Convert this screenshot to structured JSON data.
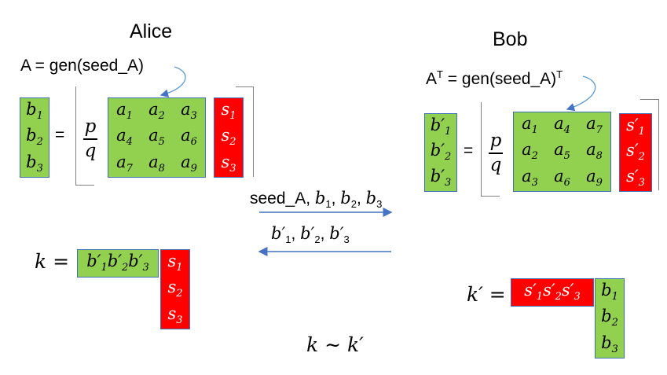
{
  "alice": {
    "title": "Alice",
    "matrix_eq_label": "A = gen(seed_A)",
    "b": [
      "b1",
      "b2",
      "b3"
    ],
    "equals": "=",
    "frac_num": "p",
    "frac_den": "q",
    "A": [
      "a1",
      "a2",
      "a3",
      "a4",
      "a5",
      "a6",
      "a7",
      "a8",
      "a9"
    ],
    "s": [
      "s1",
      "s2",
      "s3"
    ],
    "k_label": "k =",
    "k_row": [
      "b'1",
      "b'2",
      "b'3"
    ],
    "k_col": [
      "s1",
      "s2",
      "s3"
    ]
  },
  "bob": {
    "title": "Bob",
    "matrix_eq_label": "Aᵀ = gen(seed_A)ᵀ",
    "b": [
      "b'1",
      "b'2",
      "b'3"
    ],
    "equals": "=",
    "frac_num": "p",
    "frac_den": "q",
    "AT": [
      "a1",
      "a4",
      "a7",
      "a2",
      "a5",
      "a8",
      "a3",
      "a6",
      "a9"
    ],
    "s": [
      "s'1",
      "s'2",
      "s'3"
    ],
    "k_label": "k' =",
    "k_row": [
      "s'1",
      "s'2",
      "s'3"
    ],
    "k_col": [
      "b1",
      "b2",
      "b3"
    ]
  },
  "exchange": {
    "to_bob": "seed_A, b1, b2, b3",
    "to_alice": "b'1, b'2, b'3"
  },
  "conclusion": "k ~ k'",
  "colors": {
    "green": "#92d050",
    "red": "#ff0000",
    "arrow": "#4472c4"
  }
}
